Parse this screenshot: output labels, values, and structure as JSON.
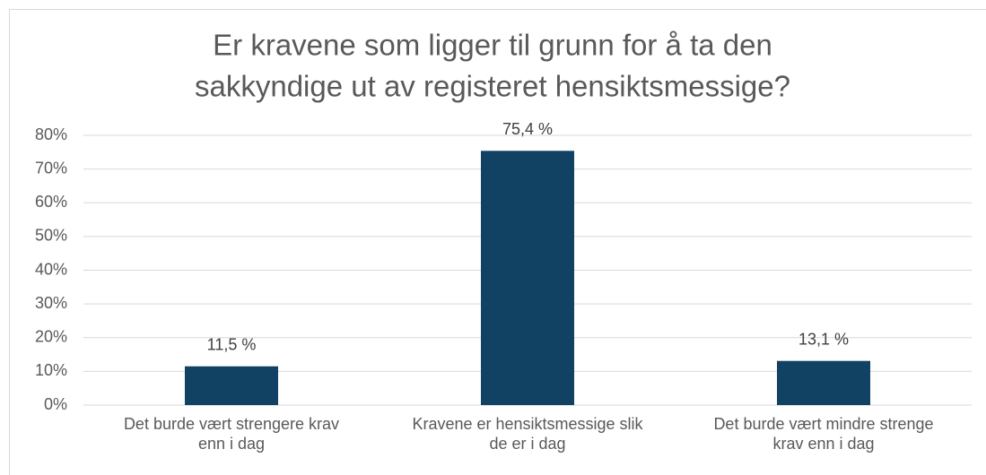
{
  "chart_data": {
    "type": "bar",
    "title": [
      "Er  kravene som ligger til grunn for å ta den",
      "sakkyndige ut av registeret hensiktsmessige?"
    ],
    "categories": [
      "Det burde vært strengere krav enn i dag",
      "Kravene er hensiktsmessige slik de er i dag",
      "Det burde vært mindre strenge krav enn i dag"
    ],
    "values": [
      11.5,
      75.4,
      13.1
    ],
    "value_labels": [
      "11,5 %",
      "75,4 %",
      "13,1 %"
    ],
    "color": "#124263",
    "ylim": [
      0,
      80
    ],
    "yticks": [
      {
        "value": 0,
        "label": "0%"
      },
      {
        "value": 10,
        "label": "10%"
      },
      {
        "value": 20,
        "label": "20%"
      },
      {
        "value": 30,
        "label": "30%"
      },
      {
        "value": 40,
        "label": "40%"
      },
      {
        "value": 50,
        "label": "50%"
      },
      {
        "value": 60,
        "label": "60%"
      },
      {
        "value": 70,
        "label": "70%"
      },
      {
        "value": 80,
        "label": "80%"
      }
    ],
    "grid": true
  }
}
